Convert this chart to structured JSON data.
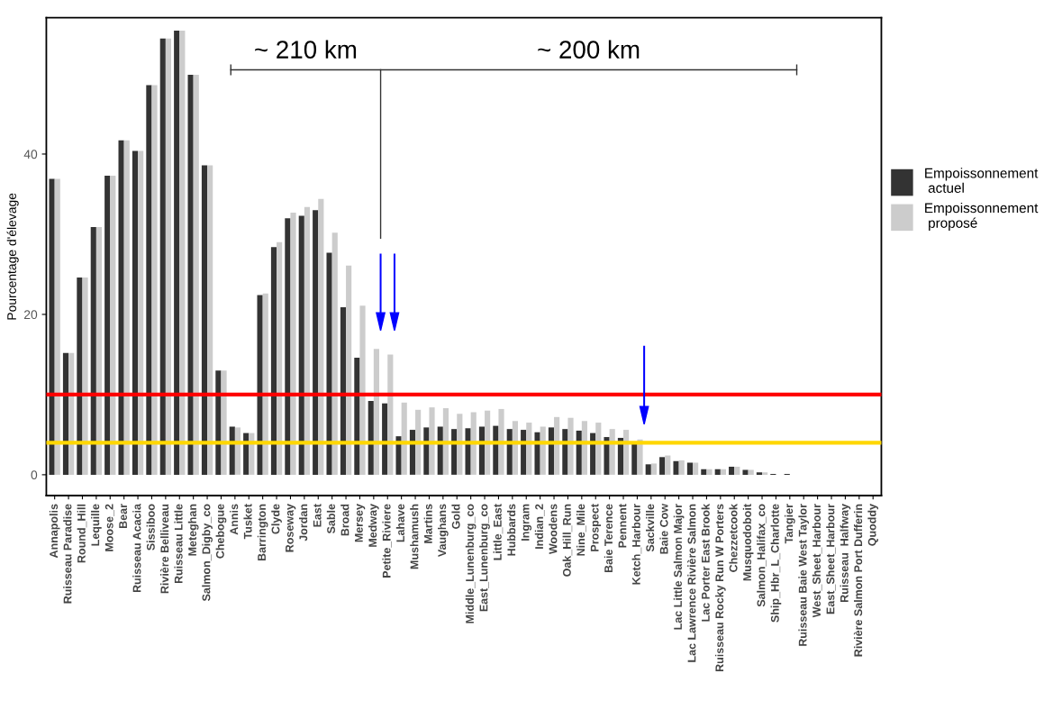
{
  "chart_data": {
    "type": "bar",
    "ylabel": "Pourcentage d'élevage",
    "categories": [
      "Annapolis",
      "Ruisseau Paradise",
      "Round_Hill",
      "Lequille",
      "Moose_2",
      "Bear",
      "Ruisseau Acacia",
      "Sissiboo",
      "Rivière Belliveau",
      "Ruisseau Little",
      "Meteghan",
      "Salmon_Digby_co",
      "Chebogue",
      "Annis",
      "Tusket",
      "Barrington",
      "Clyde",
      "Roseway",
      "Jordan",
      "East",
      "Sable",
      "Broad",
      "Mersey",
      "Medway",
      "Petite_Riviere",
      "Lahave",
      "Mushamush",
      "Martins",
      "Vaughans",
      "Gold",
      "Middle_Lunenburg_co",
      "East_Lunenburg_co",
      "Little_East",
      "Hubbards",
      "Ingram",
      "Indian_2",
      "Woodens",
      "Oak_Hill_Run",
      "Nine_Mile",
      "Prospect",
      "Baie Terence",
      "Pennent",
      "Ketch_Harbour",
      "Sackville",
      "Baie Cow",
      "Lac Little Salmon Major",
      "Lac Lawrence Rivière Salmon",
      "Lac Porter East Brook",
      "Ruisseau Rocky Run W Porters",
      "Chezzetcook",
      "Musquodoboit",
      "Salmon_Halifax_co",
      "Ship_Hbr_L_Charlotte",
      "Tangier",
      "Ruisseau Baie West Taylor",
      "West_Sheet_Harbour",
      "East_Sheet_Harbour",
      "Ruisseau  Halfway",
      "Rivière Salmon Port Dufferin",
      "Quoddy"
    ],
    "series": [
      {
        "name": "Empoissonnement\n actuel",
        "color": "#333333",
        "values": [
          36.9,
          15.2,
          24.6,
          30.9,
          37.3,
          41.7,
          40.4,
          48.6,
          54.4,
          55.4,
          49.9,
          38.6,
          13.0,
          6.0,
          5.2,
          22.4,
          28.4,
          32.0,
          32.3,
          33.0,
          27.7,
          20.9,
          14.6,
          9.2,
          8.9,
          4.8,
          5.6,
          5.9,
          6.0,
          5.7,
          5.8,
          6.0,
          6.1,
          5.7,
          5.6,
          5.3,
          5.9,
          5.7,
          5.5,
          5.2,
          4.7,
          4.6,
          3.9,
          1.3,
          2.2,
          1.7,
          1.5,
          0.7,
          0.7,
          1.0,
          0.6,
          0.3,
          0.1,
          0.1,
          0,
          0,
          0,
          0,
          0,
          0
        ]
      },
      {
        "name": "Empoissonnement\n proposé",
        "color": "#cccccc",
        "values": [
          36.9,
          15.2,
          24.6,
          30.9,
          37.3,
          41.7,
          40.4,
          48.6,
          54.4,
          55.4,
          49.9,
          38.6,
          13.0,
          5.9,
          5.2,
          22.6,
          29.0,
          32.7,
          33.4,
          34.4,
          30.2,
          26.1,
          21.1,
          15.7,
          15.0,
          9.0,
          8.1,
          8.4,
          8.3,
          7.6,
          7.8,
          8.0,
          8.2,
          6.7,
          6.5,
          6.0,
          7.2,
          7.1,
          6.7,
          6.5,
          5.7,
          5.6,
          4.4,
          1.4,
          2.4,
          1.8,
          1.5,
          0.7,
          0.7,
          1.0,
          0.6,
          0.3,
          null,
          null,
          0,
          0,
          0,
          0,
          0,
          0
        ]
      }
    ],
    "ylim": [
      -2.6,
      57
    ],
    "yticks": [
      0,
      20,
      40
    ],
    "grid": false,
    "legend": "right",
    "ref_lines": [
      {
        "axis": "y",
        "value": 10,
        "color": "#ff0000"
      },
      {
        "axis": "y",
        "value": 4,
        "color": "#ffd700"
      }
    ],
    "annotations": [
      "~ 210 km",
      "~ 200 km"
    ]
  }
}
